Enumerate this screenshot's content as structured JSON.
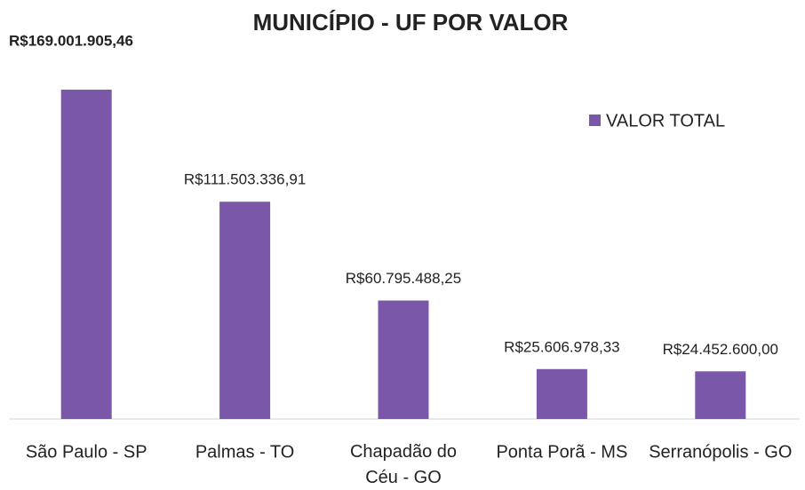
{
  "chart_data": {
    "type": "bar",
    "title": "MUNICÍPIO - UF POR VALOR",
    "categories": [
      "São Paulo - SP",
      "Palmas - TO",
      "Chapadão do Céu - GO",
      "Ponta Porã - MS",
      "Serranópolis - GO"
    ],
    "series": [
      {
        "name": "VALOR TOTAL",
        "color": "#7b57a9",
        "values": [
          169001905.46,
          111503336.91,
          60795488.25,
          25606978.33,
          24452600.0
        ],
        "value_labels": [
          "R$169.001.905,46",
          "R$111.503.336,91",
          "R$60.795.488,25",
          "R$25.606.978,33",
          "R$24.452.600,00"
        ]
      }
    ],
    "legend": "top-right"
  }
}
